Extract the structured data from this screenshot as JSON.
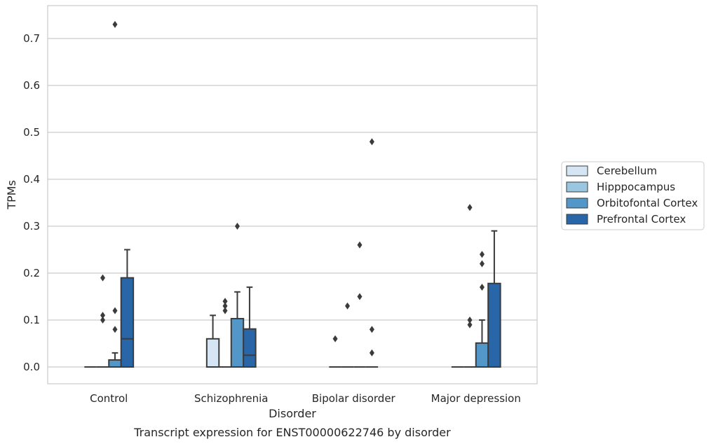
{
  "chart_data": {
    "type": "box",
    "title": "",
    "caption": "Transcript expression for ENST00000622746 by disorder",
    "xlabel": "Disorder",
    "ylabel": "TPMs",
    "ylim": [
      -0.036,
      0.768
    ],
    "yticks": [
      0.0,
      0.1,
      0.2,
      0.3,
      0.4,
      0.5,
      0.6,
      0.7
    ],
    "ytick_labels": [
      "0.0",
      "0.1",
      "0.2",
      "0.3",
      "0.4",
      "0.5",
      "0.6",
      "0.7"
    ],
    "grid": "horizontal",
    "legend_position": "right",
    "categories": [
      "Control",
      "Schizophrenia",
      "Bipolar disorder",
      "Major depression"
    ],
    "series": [
      {
        "name": "Cerebellum",
        "color": "#d6e5f3",
        "boxes": [
          {
            "whislo": 0,
            "q1": 0,
            "med": 0,
            "q3": 0,
            "whishi": 0,
            "fliers": []
          },
          {
            "whislo": 0,
            "q1": 0,
            "med": 0,
            "q3": 0.06,
            "whishi": 0.11,
            "fliers": []
          },
          {
            "whislo": 0,
            "q1": 0,
            "med": 0,
            "q3": 0,
            "whishi": 0,
            "fliers": [
              0.06
            ]
          },
          {
            "whislo": 0,
            "q1": 0,
            "med": 0,
            "q3": 0,
            "whishi": 0,
            "fliers": []
          }
        ]
      },
      {
        "name": "Hipppocampus",
        "color": "#9ac6e0",
        "boxes": [
          {
            "whislo": 0,
            "q1": 0,
            "med": 0,
            "q3": 0,
            "whishi": 0,
            "fliers": [
              0.1,
              0.11,
              0.19
            ]
          },
          {
            "whislo": 0,
            "q1": 0,
            "med": 0,
            "q3": 0,
            "whishi": 0,
            "fliers": [
              0.12,
              0.13,
              0.14
            ]
          },
          {
            "whislo": 0,
            "q1": 0,
            "med": 0,
            "q3": 0,
            "whishi": 0,
            "fliers": [
              0.13
            ]
          },
          {
            "whislo": 0,
            "q1": 0,
            "med": 0,
            "q3": 0,
            "whishi": 0,
            "fliers": [
              0.09,
              0.1,
              0.34
            ]
          }
        ]
      },
      {
        "name": "Orbitofontal Cortex",
        "color": "#5297c7",
        "boxes": [
          {
            "whislo": 0,
            "q1": 0,
            "med": 0,
            "q3": 0.015,
            "whishi": 0.03,
            "fliers": [
              0.08,
              0.12,
              0.73
            ]
          },
          {
            "whislo": 0,
            "q1": 0,
            "med": 0,
            "q3": 0.103,
            "whishi": 0.16,
            "fliers": [
              0.3
            ]
          },
          {
            "whislo": 0,
            "q1": 0,
            "med": 0,
            "q3": 0,
            "whishi": 0,
            "fliers": [
              0.15,
              0.26
            ]
          },
          {
            "whislo": 0,
            "q1": 0,
            "med": 0,
            "q3": 0.051,
            "whishi": 0.1,
            "fliers": [
              0.17,
              0.22,
              0.24
            ]
          }
        ]
      },
      {
        "name": "Prefrontal Cortex",
        "color": "#2866a8",
        "boxes": [
          {
            "whislo": 0,
            "q1": 0,
            "med": 0.06,
            "q3": 0.19,
            "whishi": 0.25,
            "fliers": []
          },
          {
            "whislo": 0,
            "q1": 0,
            "med": 0.025,
            "q3": 0.081,
            "whishi": 0.17,
            "fliers": []
          },
          {
            "whislo": 0,
            "q1": 0,
            "med": 0,
            "q3": 0,
            "whishi": 0,
            "fliers": [
              0.03,
              0.08,
              0.48
            ]
          },
          {
            "whislo": 0,
            "q1": 0,
            "med": 0,
            "q3": 0.178,
            "whishi": 0.29,
            "fliers": []
          }
        ]
      }
    ]
  }
}
